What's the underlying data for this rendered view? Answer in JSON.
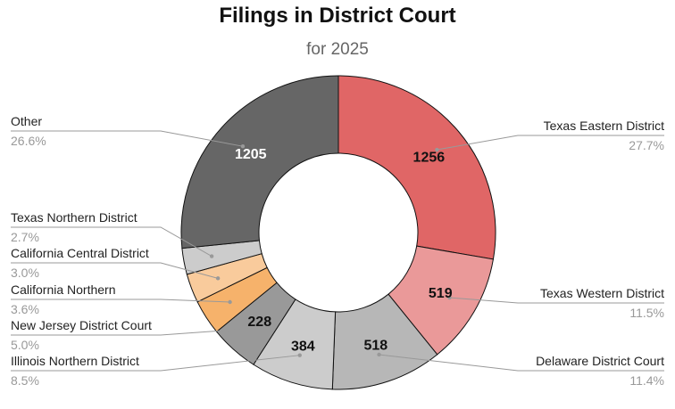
{
  "chart_data": {
    "type": "pie",
    "variant": "donut",
    "title": "Filings in District Court",
    "subtitle": "for 2025",
    "units": "filings",
    "slices": [
      {
        "label": "Texas Eastern District",
        "value": 1256,
        "percent": "27.7%",
        "color": "#e06666",
        "value_label_color": "#111111",
        "value_label_shown": true,
        "legend_side": "right"
      },
      {
        "label": "Texas Western District",
        "value": 519,
        "percent": "11.5%",
        "color": "#ea9999",
        "value_label_color": "#111111",
        "value_label_shown": true,
        "legend_side": "right"
      },
      {
        "label": "Delaware District Court",
        "value": 518,
        "percent": "11.4%",
        "color": "#b7b7b7",
        "value_label_color": "#111111",
        "value_label_shown": true,
        "legend_side": "right"
      },
      {
        "label": "Illinois Northern District",
        "value": 384,
        "percent": "8.5%",
        "color": "#cccccc",
        "value_label_color": "#111111",
        "value_label_shown": true,
        "legend_side": "left"
      },
      {
        "label": "New Jersey District Court",
        "value": 228,
        "percent": "5.0%",
        "color": "#999999",
        "value_label_color": "#111111",
        "value_label_shown": true,
        "legend_side": "left"
      },
      {
        "label": "California Northern",
        "value": 163,
        "percent": "3.6%",
        "color": "#f6b26b",
        "value_label_shown": false,
        "legend_side": "left"
      },
      {
        "label": "California Central District",
        "value": 136,
        "percent": "3.0%",
        "color": "#f9cb9c",
        "value_label_shown": false,
        "legend_side": "left"
      },
      {
        "label": "Texas Northern District",
        "value": 122,
        "percent": "2.7%",
        "color": "#cccccc",
        "value_label_shown": false,
        "legend_side": "left"
      },
      {
        "label": "Other",
        "value": 1205,
        "percent": "26.6%",
        "color": "#666666",
        "value_label_color": "#ffffff",
        "value_label_shown": true,
        "legend_side": "left"
      }
    ]
  }
}
